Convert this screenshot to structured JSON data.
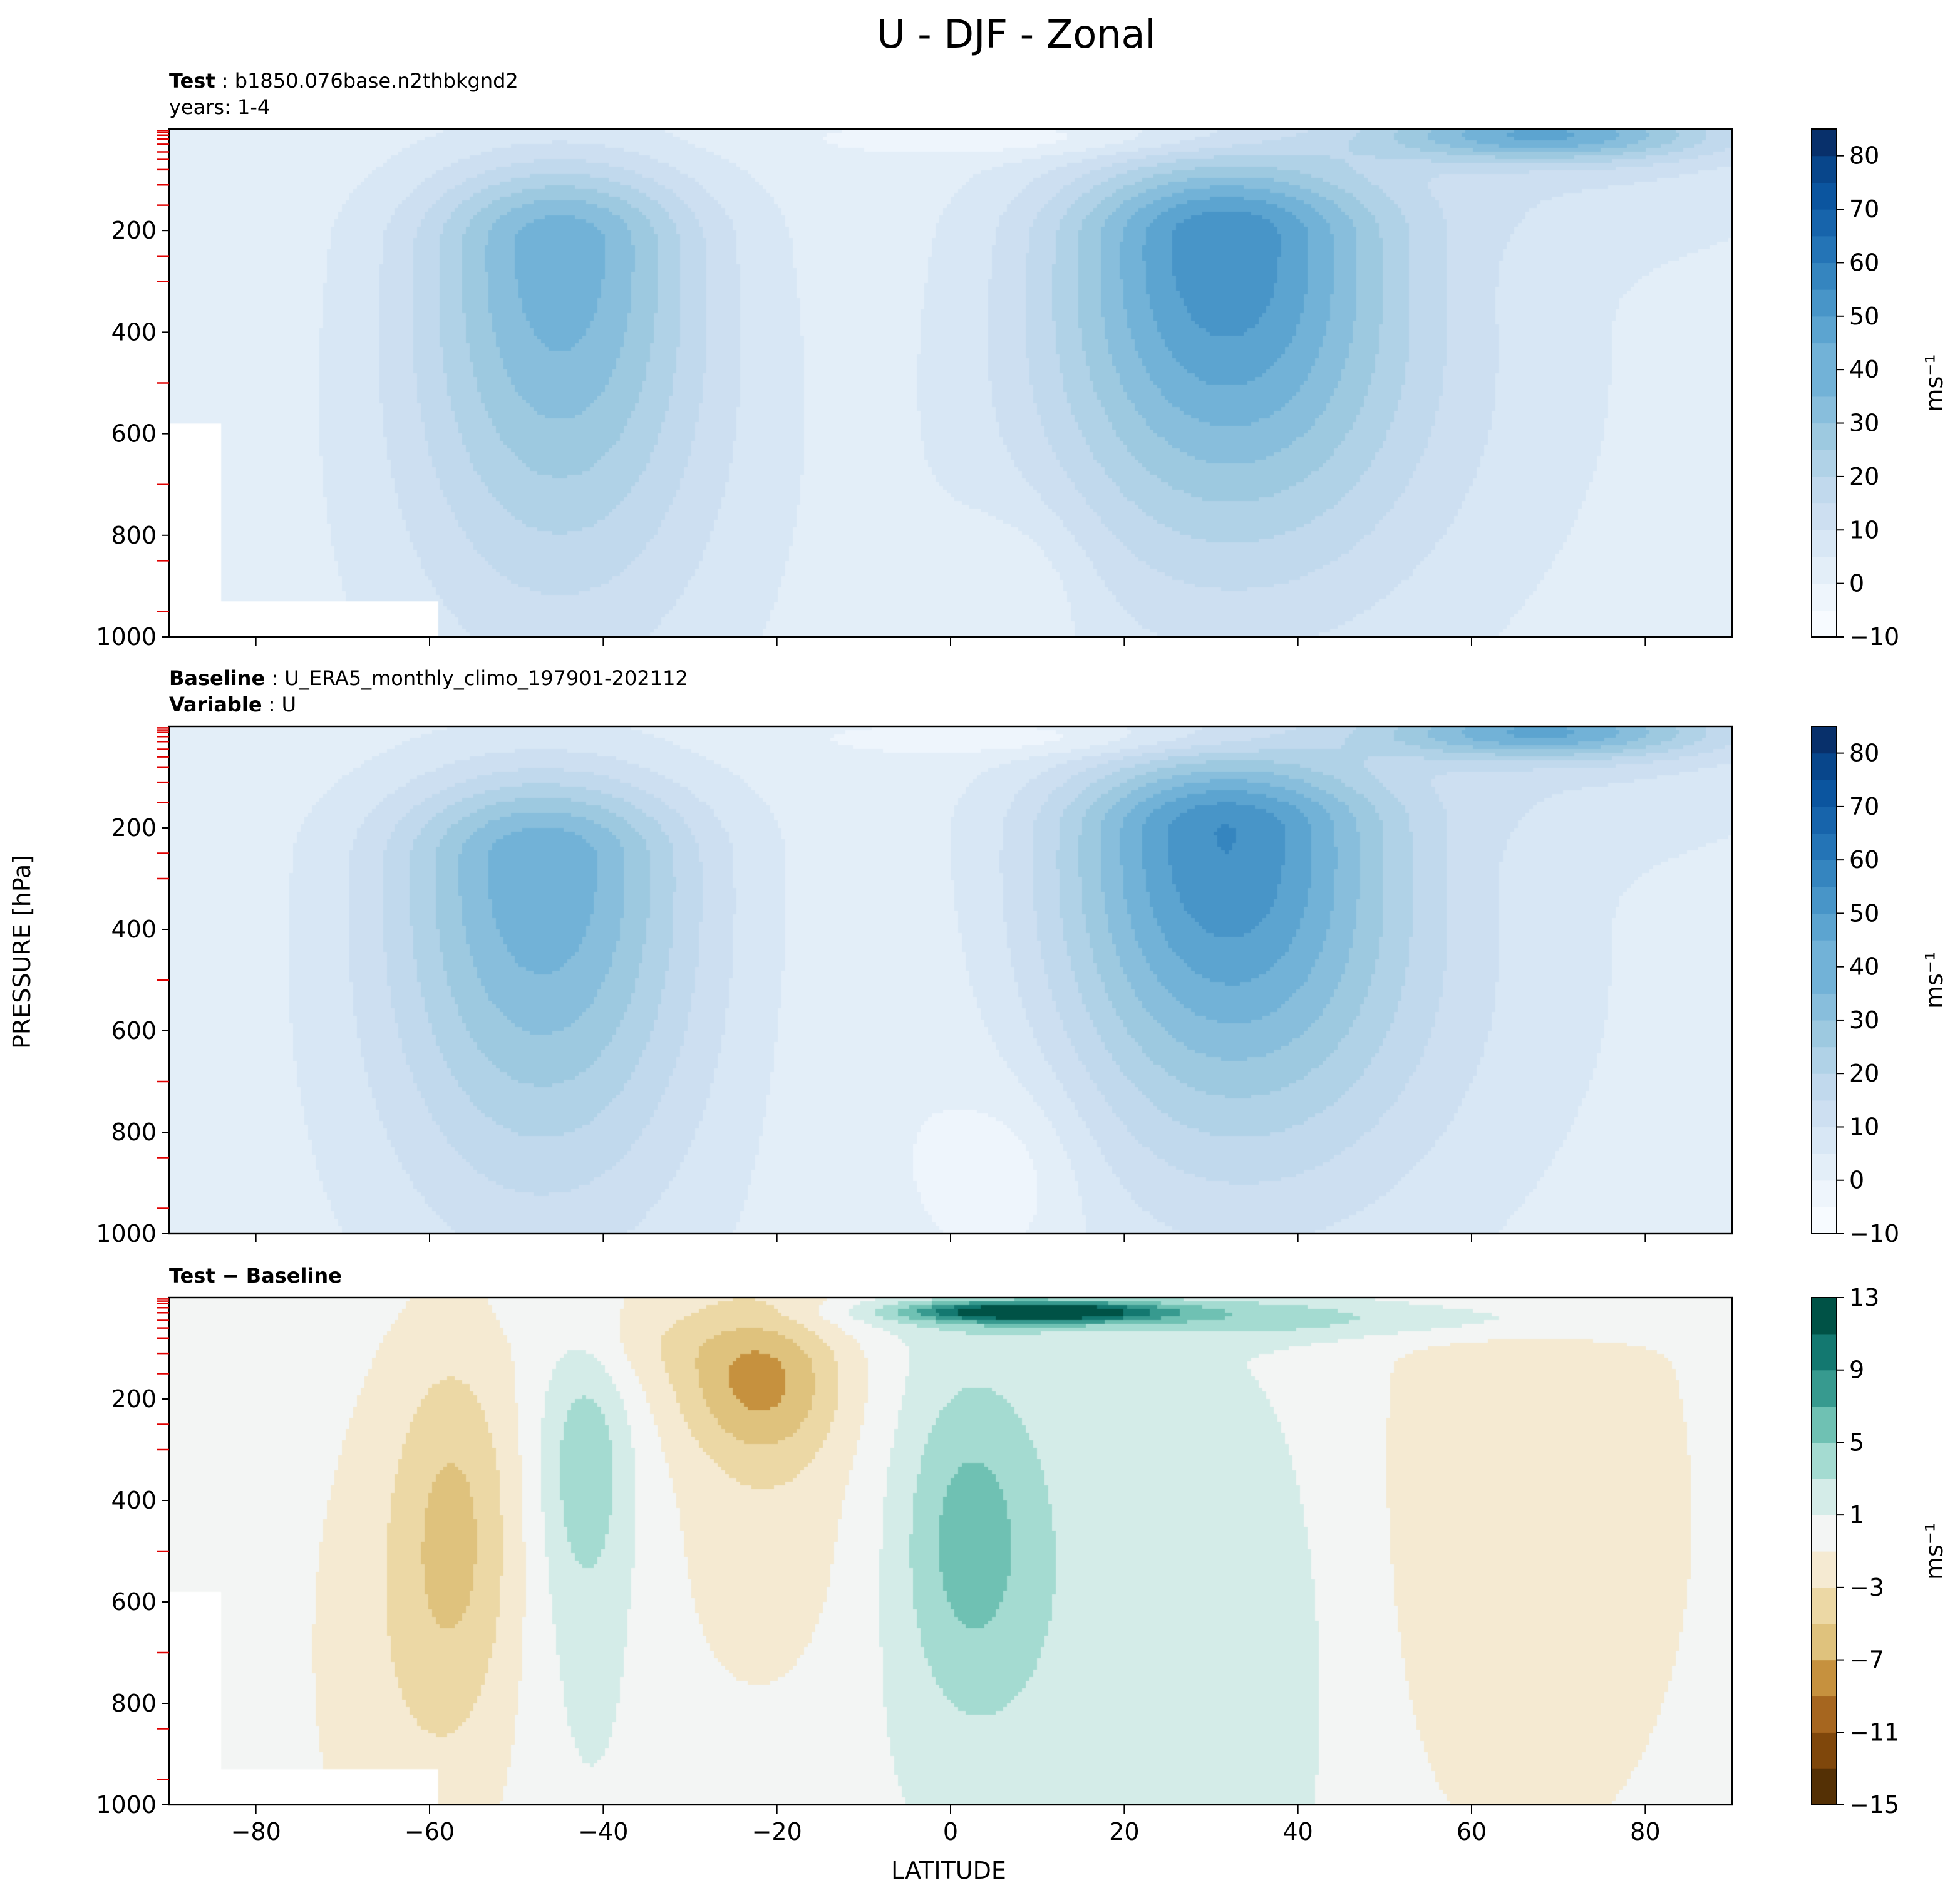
{
  "suptitle": "U - DJF - Zonal",
  "chart_data": [
    {
      "type": "contour",
      "title_lines": [
        {
          "bold": "Test",
          "sep": " : ",
          "text": "b1850.076base.n2thbkgnd2"
        },
        {
          "bold": "",
          "sep": "",
          "text": "years: 1-4"
        }
      ],
      "x": {
        "label": "LATITUDE",
        "range": [
          -90,
          90
        ],
        "ticks": [
          -80,
          -60,
          -40,
          -20,
          0,
          20,
          40,
          60,
          80
        ],
        "tick_labels_shown": false
      },
      "y": {
        "label": "PRESSURE [hPa]",
        "range": [
          1000,
          0
        ],
        "ticks": [
          200,
          400,
          600,
          800,
          1000
        ],
        "tick_labels": [
          "200",
          "400",
          "600",
          "800",
          "1000"
        ]
      },
      "colormap": "Blues",
      "colorbar": {
        "unit": "ms⁻¹",
        "levels": [
          -10,
          -5,
          0,
          5,
          10,
          15,
          20,
          25,
          30,
          35,
          40,
          45,
          50,
          55,
          60,
          65,
          70,
          75,
          80,
          85
        ],
        "tick_values": [
          -10,
          0,
          10,
          20,
          30,
          40,
          50,
          60,
          70,
          80
        ],
        "tick_labels": [
          "−10",
          "0",
          "10",
          "20",
          "30",
          "40",
          "50",
          "60",
          "70",
          "80"
        ]
      },
      "features": [
        {
          "kind": "jet",
          "lat": -45,
          "pressure": 220,
          "max_value": 40
        },
        {
          "kind": "jet",
          "lat": 31,
          "pressure": 210,
          "max_value": 47
        },
        {
          "kind": "stratospheric-westerly",
          "lat": 65,
          "pressure": 15,
          "max_value": 35
        }
      ]
    },
    {
      "type": "contour",
      "title_lines": [
        {
          "bold": "Baseline",
          "sep": " : ",
          "text": "U_ERA5_monthly_climo_197901-202112"
        },
        {
          "bold": "Variable",
          "sep": " : ",
          "text": "U"
        }
      ],
      "x": {
        "label": "LATITUDE",
        "range": [
          -90,
          90
        ],
        "ticks": [
          -80,
          -60,
          -40,
          -20,
          0,
          20,
          40,
          60,
          80
        ],
        "tick_labels_shown": false
      },
      "y": {
        "label": "PRESSURE [hPa]",
        "range": [
          1000,
          0
        ],
        "ticks": [
          200,
          400,
          600,
          800,
          1000
        ],
        "tick_labels": [
          "200",
          "400",
          "600",
          "800",
          "1000"
        ]
      },
      "colormap": "Blues",
      "colorbar": {
        "unit": "ms⁻¹",
        "levels": [
          -10,
          -5,
          0,
          5,
          10,
          15,
          20,
          25,
          30,
          35,
          40,
          45,
          50,
          55,
          60,
          65,
          70,
          75,
          80,
          85
        ],
        "tick_values": [
          -10,
          0,
          10,
          20,
          30,
          40,
          50,
          60,
          70,
          80
        ],
        "tick_labels": [
          "−10",
          "0",
          "10",
          "20",
          "30",
          "40",
          "50",
          "60",
          "70",
          "80"
        ]
      },
      "features": [
        {
          "kind": "jet",
          "lat": -48,
          "pressure": 250,
          "max_value": 40
        },
        {
          "kind": "jet",
          "lat": 31,
          "pressure": 200,
          "max_value": 48
        },
        {
          "kind": "stratospheric-westerly",
          "lat": 65,
          "pressure": 15,
          "max_value": 35
        }
      ]
    },
    {
      "type": "contour",
      "title_lines": [
        {
          "bold": "Test − Baseline",
          "sep": "",
          "text": ""
        }
      ],
      "x": {
        "label": "LATITUDE",
        "range": [
          -90,
          90
        ],
        "ticks": [
          -80,
          -60,
          -40,
          -20,
          0,
          20,
          40,
          60,
          80
        ],
        "tick_labels": [
          "−80",
          "−60",
          "−40",
          "−20",
          "0",
          "20",
          "40",
          "60",
          "80"
        ]
      },
      "y": {
        "label": "PRESSURE [hPa]",
        "range": [
          1000,
          0
        ],
        "ticks": [
          200,
          400,
          600,
          800,
          1000
        ],
        "tick_labels": [
          "200",
          "400",
          "600",
          "800",
          "1000"
        ]
      },
      "colormap": "BrBG",
      "colorbar": {
        "unit": "ms⁻¹",
        "levels": [
          -15,
          -13,
          -11,
          -9,
          -7,
          -5,
          -3,
          -1,
          1,
          3,
          5,
          7,
          9,
          11,
          13
        ],
        "tick_values": [
          -15,
          -11,
          -7,
          -3,
          1,
          5,
          9,
          13
        ],
        "tick_labels": [
          "−15",
          "−11",
          "−7",
          "−3",
          "1",
          "5",
          "9",
          "13"
        ]
      },
      "features": [
        {
          "kind": "anomaly",
          "lat": -57,
          "pressure": 350,
          "value": -4
        },
        {
          "kind": "anomaly",
          "lat": -22,
          "pressure": 150,
          "value": -6
        },
        {
          "kind": "anomaly",
          "lat": -42,
          "pressure": 280,
          "value": 3
        },
        {
          "kind": "anomaly",
          "lat": 3,
          "pressure": 450,
          "value": 4
        },
        {
          "kind": "anomaly",
          "lat": 10,
          "pressure": 30,
          "value": 12
        },
        {
          "kind": "anomaly",
          "lat": 65,
          "pressure": 400,
          "value": -2
        }
      ]
    }
  ],
  "colors": {
    "blues": [
      "#f7fbff",
      "#eef5fc",
      "#e3eef8",
      "#d8e7f5",
      "#cddff1",
      "#c1d9ed",
      "#b0d2e7",
      "#9dc9e0",
      "#88bedc",
      "#72b2d7",
      "#5ca4d0",
      "#4895c8",
      "#3585bf",
      "#2474b6",
      "#1764ab",
      "#0b559f",
      "#08468b",
      "#08306b"
    ],
    "brbg": [
      "#543005",
      "#7f470b",
      "#a6661f",
      "#c6913e",
      "#dfc27d",
      "#ecd8a5",
      "#f5ead2",
      "#f3f5f4",
      "#d4ece8",
      "#a4dbd1",
      "#6fc1b3",
      "#379a8f",
      "#137870",
      "#005246"
    ]
  }
}
